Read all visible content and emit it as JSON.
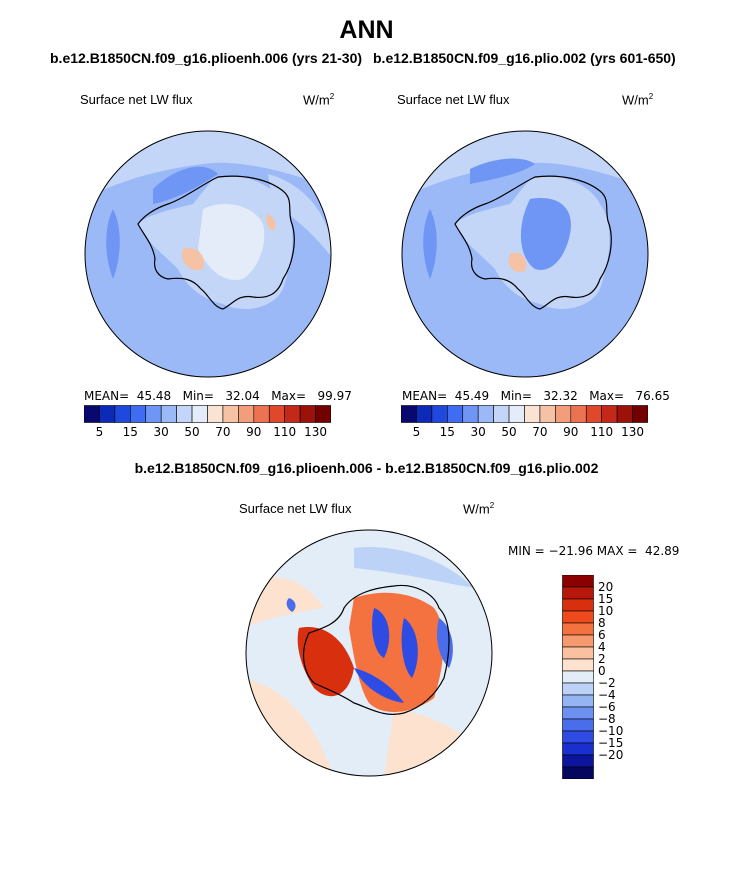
{
  "title": "ANN",
  "left_panel": {
    "case": "b.e12.B1850CN.f09_g16.plioenh.006 (yrs 21-30)",
    "variable": "Surface net LW flux",
    "units": "W/m",
    "units_sup": "2",
    "stats": "MEAN=  45.48   Min=   32.04   Max=   99.97"
  },
  "right_panel": {
    "case": "b.e12.B1850CN.f09_g16.plio.002 (yrs 601-650)",
    "variable": "Surface net LW flux",
    "units": "W/m",
    "units_sup": "2",
    "stats": "MEAN=  45.49   Min=   32.32   Max=   76.65"
  },
  "top_colorbar": {
    "colors": [
      "#08086e",
      "#0c2ab8",
      "#1f49dc",
      "#3f6cf0",
      "#6f95f5",
      "#9cb9f7",
      "#c3d6f8",
      "#e3ecf8",
      "#fbe3d4",
      "#f6c2a6",
      "#f29d7c",
      "#ec7352",
      "#e0482c",
      "#c32818",
      "#9c1208",
      "#720000"
    ],
    "labels": [
      "5",
      "15",
      "30",
      "50",
      "70",
      "90",
      "110",
      "130"
    ]
  },
  "diff_panel": {
    "title": "b.e12.B1850CN.f09_g16.plioenh.006 - b.e12.B1850CN.f09_g16.plio.002",
    "variable": "Surface net LW flux",
    "units": "W/m",
    "units_sup": "2",
    "minmax": "MIN = −21.96 MAX =  42.89"
  },
  "diff_colorbar": {
    "colors": [
      "#8b0000",
      "#b8180b",
      "#d8300f",
      "#ee4a1c",
      "#f4723f",
      "#f7996e",
      "#fac0a0",
      "#fde2cf",
      "#e3edf8",
      "#bcd3f7",
      "#94b4f4",
      "#6c91f0",
      "#4a6dec",
      "#2e4ce4",
      "#1a2fd0",
      "#0d149e",
      "#05065e"
    ],
    "labels": [
      "20",
      "15",
      "10",
      "8",
      "6",
      "4",
      "2",
      "0",
      "−2",
      "−4",
      "−6",
      "−8",
      "−10",
      "−15",
      "−20"
    ]
  },
  "map_colors": {
    "ocean_base": "#9cb9f7",
    "light_blue": "#c3d6f8",
    "pale": "#e3ecf8",
    "mid_blue": "#6f95f5",
    "warm": "#f6c2a6",
    "diff_bg": "#e3edf8",
    "diff_warm": "#fde2cf",
    "diff_red": "#d8300f",
    "diff_blue": "#2e4ce4"
  }
}
